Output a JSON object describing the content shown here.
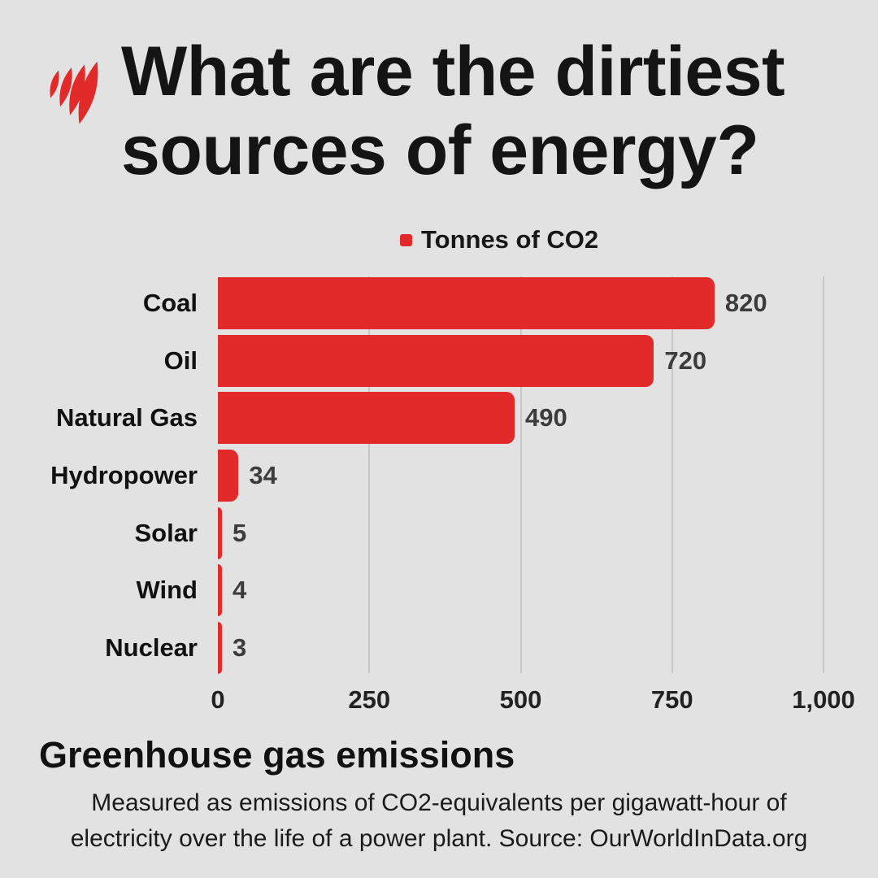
{
  "brand": {
    "logo_icon": "sbs-flame-logo",
    "logo_color": "#e22a2b"
  },
  "title": {
    "line1": "What are the dirtiest",
    "line2": "sources of energy?"
  },
  "legend": {
    "label": "Tonnes of CO2",
    "marker_color": "#e22a2b"
  },
  "chart_data": {
    "type": "bar",
    "orientation": "horizontal",
    "title": "What are the dirtiest sources of energy?",
    "series_label": "Tonnes of CO2",
    "categories": [
      "Coal",
      "Oil",
      "Natural Gas",
      "Hydropower",
      "Solar",
      "Wind",
      "Nuclear"
    ],
    "values": [
      820,
      720,
      490,
      34,
      5,
      4,
      3
    ],
    "value_labels": [
      "820",
      "720",
      "490",
      "34",
      "5",
      "4",
      "3"
    ],
    "xlim": [
      0,
      1000
    ],
    "x_ticks": [
      0,
      250,
      500,
      750,
      1000
    ],
    "x_tick_labels": [
      "0",
      "250",
      "500",
      "750",
      "1,000"
    ],
    "bar_color": "#e22a2b",
    "grid": true,
    "legend_position": "top"
  },
  "footer": {
    "heading": "Greenhouse gas emissions",
    "note_line1": "Measured as emissions of CO2-equivalents per gigawatt-hour of",
    "note_line2": "electricity over the life of a power plant. Source: OurWorldInData.org"
  },
  "colors": {
    "background": "#e3e2e2",
    "accent_red": "#e22a2b",
    "title_text": "#151414",
    "value_text": "#3d3c3c",
    "gridline": "#c8c7c7"
  }
}
